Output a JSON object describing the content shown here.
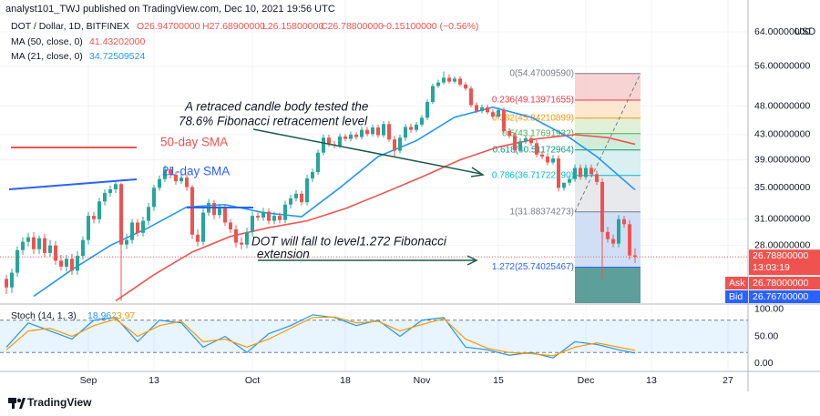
{
  "chart_data": {
    "type": "candlestick",
    "header": {
      "publisher": "analyst101_TWJ published on TradingView.com, Dec 10, 2021 19:56 UTC",
      "symbol": "DOT / Dollar, 1D, BITFINEX",
      "open": "O26.94700000",
      "high": "H27.68900000",
      "low": "L26.15800000",
      "close": "C26.78800000",
      "change": "−0.15100000 (−0.56%)"
    },
    "currency": "USD",
    "x": [
      "2021-08-17",
      "2021-08-18",
      "2021-08-19",
      "2021-08-20",
      "2021-08-21",
      "2021-08-22",
      "2021-08-23",
      "2021-08-24",
      "2021-08-25",
      "2021-08-26",
      "2021-08-27",
      "2021-08-28",
      "2021-08-29",
      "2021-08-30",
      "2021-08-31",
      "2021-09-01",
      "2021-09-02",
      "2021-09-03",
      "2021-09-04",
      "2021-09-05",
      "2021-09-06",
      "2021-09-07",
      "2021-09-08",
      "2021-09-09",
      "2021-09-10",
      "2021-09-11",
      "2021-09-12",
      "2021-09-13",
      "2021-09-14",
      "2021-09-15",
      "2021-09-16",
      "2021-09-17",
      "2021-09-18",
      "2021-09-19",
      "2021-09-20",
      "2021-09-21",
      "2021-09-22",
      "2021-09-23",
      "2021-09-24",
      "2021-09-25",
      "2021-09-26",
      "2021-09-27",
      "2021-09-28",
      "2021-09-29",
      "2021-09-30",
      "2021-10-01",
      "2021-10-02",
      "2021-10-03",
      "2021-10-04",
      "2021-10-05",
      "2021-10-06",
      "2021-10-07",
      "2021-10-08",
      "2021-10-09",
      "2021-10-10",
      "2021-10-11",
      "2021-10-12",
      "2021-10-13",
      "2021-10-14",
      "2021-10-15",
      "2021-10-16",
      "2021-10-17",
      "2021-10-18",
      "2021-10-19",
      "2021-10-20",
      "2021-10-21",
      "2021-10-22",
      "2021-10-23",
      "2021-10-24",
      "2021-10-25",
      "2021-10-26",
      "2021-10-27",
      "2021-10-28",
      "2021-10-29",
      "2021-10-30",
      "2021-10-31",
      "2021-11-01",
      "2021-11-02",
      "2021-11-03",
      "2021-11-04",
      "2021-11-05",
      "2021-11-06",
      "2021-11-07",
      "2021-11-08",
      "2021-11-09",
      "2021-11-10",
      "2021-11-11",
      "2021-11-12",
      "2021-11-13",
      "2021-11-14",
      "2021-11-15",
      "2021-11-16",
      "2021-11-17",
      "2021-11-18",
      "2021-11-19",
      "2021-11-20",
      "2021-11-21",
      "2021-11-22",
      "2021-11-23",
      "2021-11-24",
      "2021-11-25",
      "2021-11-26",
      "2021-11-27",
      "2021-11-28",
      "2021-11-29",
      "2021-11-30",
      "2021-12-01",
      "2021-12-02",
      "2021-12-03",
      "2021-12-04",
      "2021-12-05",
      "2021-12-06",
      "2021-12-07",
      "2021-12-08",
      "2021-12-09",
      "2021-12-10"
    ],
    "open": [
      24.6,
      23.8,
      25.2,
      27.5,
      28.4,
      28.9,
      27.6,
      28.8,
      27.2,
      28.0,
      26.4,
      25.8,
      26.6,
      25.4,
      26.9,
      28.6,
      31.4,
      31.0,
      33.2,
      34.3,
      34.8,
      35.5,
      28.1,
      28.6,
      30.6,
      29.4,
      30.8,
      32.5,
      35.0,
      36.2,
      37.6,
      36.8,
      35.9,
      36.4,
      35.1,
      29.2,
      28.4,
      31.8,
      33.0,
      31.5,
      32.4,
      30.6,
      29.8,
      28.3,
      28.1,
      29.5,
      31.4,
      31.2,
      31.9,
      30.8,
      31.4,
      30.9,
      32.8,
      33.6,
      34.2,
      33.1,
      36.3,
      37.2,
      40.1,
      42.5,
      41.4,
      41.2,
      42.7,
      42.3,
      43.0,
      42.6,
      43.8,
      43.1,
      44.2,
      42.9,
      44.8,
      42.2,
      40.4,
      42.5,
      44.3,
      43.8,
      44.7,
      45.9,
      48.8,
      51.9,
      52.6,
      53.6,
      52.8,
      53.4,
      52.2,
      51.4,
      48.2,
      47.1,
      47.8,
      46.9,
      46.1,
      47.3,
      43.6,
      42.8,
      40.5,
      41.9,
      42.4,
      41.6,
      39.8,
      39.5,
      38.6,
      39.2,
      35.0,
      35.7,
      36.2,
      37.8,
      36.5,
      37.8,
      36.9,
      35.8,
      29.5,
      28.7,
      28.2,
      31.0,
      30.4,
      26.947
    ],
    "high": [
      25.0,
      25.6,
      27.9,
      28.9,
      29.4,
      29.5,
      29.1,
      29.3,
      28.6,
      28.5,
      27.0,
      27.0,
      27.1,
      27.4,
      29.0,
      31.9,
      31.9,
      33.7,
      34.8,
      35.3,
      36.0,
      35.7,
      29.3,
      31.0,
      31.0,
      31.3,
      33.0,
      35.4,
      36.7,
      38.2,
      38.0,
      37.2,
      36.9,
      36.8,
      35.4,
      29.8,
      32.3,
      33.5,
      33.4,
      32.9,
      32.8,
      31.0,
      30.3,
      28.9,
      30.0,
      31.9,
      31.8,
      32.4,
      32.3,
      31.9,
      31.8,
      33.3,
      34.1,
      34.7,
      34.6,
      36.8,
      37.7,
      40.6,
      43.0,
      43.0,
      42.0,
      43.2,
      43.1,
      43.5,
      43.4,
      44.3,
      44.3,
      44.7,
      44.7,
      45.3,
      45.3,
      42.8,
      43.0,
      44.8,
      44.9,
      45.2,
      46.4,
      49.3,
      52.4,
      53.2,
      54.9,
      54.3,
      53.9,
      53.9,
      52.7,
      51.9,
      48.7,
      48.3,
      48.3,
      47.4,
      47.8,
      47.8,
      44.1,
      43.3,
      42.4,
      42.9,
      42.9,
      42.1,
      40.3,
      40.0,
      39.7,
      39.7,
      35.7,
      36.7,
      38.3,
      38.3,
      38.3,
      38.3,
      37.4,
      36.3,
      30.1,
      29.2,
      31.5,
      31.4,
      30.9,
      27.689
    ],
    "low": [
      23.2,
      23.3,
      24.8,
      27.0,
      27.9,
      27.1,
      27.1,
      26.8,
      26.8,
      26.0,
      25.4,
      25.3,
      25.0,
      25.0,
      26.5,
      28.1,
      30.5,
      30.5,
      32.7,
      33.8,
      34.3,
      22.6,
      27.6,
      28.2,
      29.0,
      29.0,
      30.3,
      32.0,
      34.6,
      35.8,
      36.3,
      35.4,
      35.5,
      34.6,
      28.7,
      27.9,
      28.0,
      31.4,
      31.0,
      31.1,
      30.2,
      29.4,
      27.8,
      27.6,
      27.7,
      29.0,
      30.8,
      30.8,
      30.4,
      30.4,
      30.5,
      30.5,
      32.3,
      33.2,
      32.7,
      32.7,
      35.8,
      36.8,
      39.7,
      41.0,
      40.8,
      40.8,
      41.9,
      41.9,
      42.2,
      42.2,
      42.7,
      42.7,
      42.5,
      42.5,
      41.8,
      39.5,
      40.0,
      42.0,
      43.3,
      43.4,
      44.3,
      45.5,
      48.4,
      51.5,
      52.2,
      52.4,
      52.4,
      51.8,
      51.0,
      47.8,
      46.7,
      46.7,
      46.5,
      45.7,
      45.7,
      43.2,
      42.4,
      40.0,
      40.1,
      41.5,
      41.2,
      39.4,
      39.1,
      38.2,
      38.3,
      34.5,
      34.6,
      35.3,
      35.8,
      36.1,
      36.1,
      36.5,
      35.4,
      24.5,
      28.3,
      27.8,
      27.8,
      30.0,
      26.5,
      26.158
    ],
    "close": [
      23.8,
      25.2,
      27.5,
      28.4,
      28.9,
      27.6,
      28.8,
      27.2,
      28.0,
      26.4,
      25.8,
      26.6,
      25.4,
      26.9,
      28.6,
      31.4,
      31.0,
      33.2,
      34.3,
      34.8,
      35.5,
      28.1,
      28.6,
      30.6,
      29.4,
      30.8,
      32.5,
      35.0,
      36.2,
      37.6,
      36.8,
      35.9,
      36.4,
      35.1,
      29.2,
      28.4,
      31.8,
      33.0,
      31.5,
      32.4,
      30.6,
      29.8,
      28.3,
      28.1,
      29.5,
      31.4,
      31.2,
      31.9,
      30.8,
      31.4,
      30.9,
      32.8,
      33.6,
      34.2,
      33.1,
      36.3,
      37.2,
      40.1,
      42.5,
      41.4,
      41.2,
      42.7,
      42.3,
      43.0,
      42.6,
      43.8,
      43.1,
      44.2,
      42.9,
      44.8,
      42.2,
      40.4,
      42.5,
      44.3,
      43.8,
      44.7,
      45.9,
      48.8,
      51.9,
      52.6,
      53.6,
      52.8,
      53.4,
      52.2,
      51.4,
      48.2,
      47.1,
      47.8,
      46.9,
      46.1,
      47.3,
      43.6,
      42.8,
      40.5,
      41.9,
      42.4,
      41.6,
      39.8,
      39.5,
      38.6,
      39.2,
      35.0,
      35.7,
      36.2,
      37.8,
      36.5,
      37.8,
      36.9,
      35.8,
      29.5,
      28.7,
      28.2,
      31.0,
      30.4,
      26.94,
      26.788
    ],
    "up_color": "#26a69a",
    "down_color": "#ef5350",
    "xlim": [
      "2021-08-16",
      "2021-12-31"
    ],
    "xticks": [
      {
        "value": "2021-09-01",
        "label": "Sep"
      },
      {
        "value": "2021-09-13",
        "label": "13"
      },
      {
        "value": "2021-10-01",
        "label": "Oct"
      },
      {
        "value": "2021-10-18",
        "label": "18"
      },
      {
        "value": "2021-11-01",
        "label": "Nov"
      },
      {
        "value": "2021-11-15",
        "label": "15"
      },
      {
        "value": "2021-12-01",
        "label": "Dec"
      },
      {
        "value": "2021-12-13",
        "label": "13"
      },
      {
        "value": "2021-12-27",
        "label": "27"
      }
    ],
    "ylim": [
      22.4,
      72.4
    ],
    "log_scale": true,
    "yticks": [
      {
        "value": 64,
        "label": "64.00000000"
      },
      {
        "value": 56,
        "label": "56.00000000"
      },
      {
        "value": 48,
        "label": "48.00000000"
      },
      {
        "value": 43,
        "label": "43.00000000"
      },
      {
        "value": 39,
        "label": "39.00000000"
      },
      {
        "value": 35,
        "label": "35.00000000"
      },
      {
        "value": 31,
        "label": "31.00000000"
      },
      {
        "value": 28,
        "label": "28.00000000"
      }
    ],
    "grid": true,
    "overlays": [
      {
        "name": "MA (50, close, 0)",
        "last_label": "41.43202000",
        "color": "#ef5350",
        "x": [
          "2021-09-06",
          "2021-09-13",
          "2021-09-20",
          "2021-09-27",
          "2021-10-04",
          "2021-10-11",
          "2021-10-18",
          "2021-10-25",
          "2021-11-01",
          "2021-11-08",
          "2021-11-15",
          "2021-11-22",
          "2021-11-29",
          "2021-12-05",
          "2021-12-10"
        ],
        "values": [
          22.6,
          25.0,
          27.3,
          29.0,
          30.0,
          30.8,
          32.3,
          34.3,
          36.5,
          39.0,
          41.0,
          42.3,
          43.0,
          42.5,
          41.43202
        ]
      },
      {
        "name": "MA (21, close, 0)",
        "last_label": "34.72509524",
        "color": "#2196f3",
        "x": [
          "2021-08-22",
          "2021-08-29",
          "2021-09-05",
          "2021-09-12",
          "2021-09-19",
          "2021-09-26",
          "2021-10-03",
          "2021-10-10",
          "2021-10-17",
          "2021-10-24",
          "2021-10-31",
          "2021-11-07",
          "2021-11-14",
          "2021-11-21",
          "2021-11-28",
          "2021-12-03",
          "2021-12-10"
        ],
        "values": [
          23.0,
          25.5,
          28.0,
          30.0,
          32.5,
          32.8,
          31.8,
          31.3,
          35.0,
          39.5,
          42.0,
          46.0,
          47.8,
          46.0,
          42.5,
          39.5,
          34.72509524
        ]
      }
    ],
    "last_price": {
      "value": 26.788,
      "label": "26.78800000",
      "countdown": "13:03:19"
    },
    "ask": {
      "name": "Ask",
      "label": "26.78000000"
    },
    "bid": {
      "name": "Bid",
      "label": "26.76700000"
    },
    "fibonacci": {
      "x": [
        "2021-11-29",
        "2021-12-11"
      ],
      "levels": [
        {
          "value": 54.4700959,
          "label": "0(54.47009590)",
          "color": "#787b86",
          "fill": "#f7cbcb"
        },
        {
          "value": 49.13971655,
          "label": "0.236(49.13971655)",
          "color": "#f23645",
          "fill": "#fde3c9"
        },
        {
          "value": 45.84210899,
          "label": "0.382(45.84210899)",
          "color": "#ff9800",
          "fill": "#dcefd2"
        },
        {
          "value": 43.17691932,
          "label": "0.5(43.17691932)",
          "color": "#4caf50",
          "fill": "#c9ead4"
        },
        {
          "value": 40.51172964,
          "label": "0.618(40.51172964)",
          "color": "#089981",
          "fill": "#d3ecec"
        },
        {
          "value": 36.7172229,
          "label": "0.786(36.71722290)",
          "color": "#00bcd4",
          "fill": "#e3e5ea"
        },
        {
          "value": 31.88374273,
          "label": "1(31.88374273)",
          "color": "#787b86",
          "fill": "#c9d9f5"
        },
        {
          "value": 25.74025467,
          "label": "1.272(25.74025467)",
          "color": "#2962ff",
          "fill": "#3f8e8a"
        }
      ]
    },
    "annotations": {
      "fib_note": [
        "A retraced candle body tested the",
        "78.6% Fibonacci retracement level"
      ],
      "sma50": "50-day SMA",
      "sma21": "21-day SMA",
      "target": [
        "DOT will fall to  level1.272 Fibonacci",
        "extension"
      ]
    },
    "stochastic": {
      "name": "Stoch (14, 1, 3)",
      "k_color": "#2196f3",
      "d_color": "#ff9800",
      "x": [
        "2021-08-17",
        "2021-08-21",
        "2021-08-25",
        "2021-08-29",
        "2021-09-02",
        "2021-09-06",
        "2021-09-10",
        "2021-09-14",
        "2021-09-18",
        "2021-09-22",
        "2021-09-26",
        "2021-09-30",
        "2021-10-04",
        "2021-10-08",
        "2021-10-12",
        "2021-10-16",
        "2021-10-20",
        "2021-10-24",
        "2021-10-28",
        "2021-11-01",
        "2021-11-05",
        "2021-11-09",
        "2021-11-13",
        "2021-11-17",
        "2021-11-21",
        "2021-11-25",
        "2021-11-29",
        "2021-12-03",
        "2021-12-07",
        "2021-12-10"
      ],
      "k": [
        30,
        75,
        60,
        45,
        80,
        85,
        40,
        80,
        75,
        30,
        50,
        20,
        55,
        70,
        90,
        85,
        70,
        80,
        50,
        80,
        85,
        30,
        25,
        15,
        20,
        10,
        40,
        35,
        25,
        18.96
      ],
      "d": [
        25,
        60,
        65,
        50,
        70,
        82,
        50,
        70,
        78,
        40,
        45,
        30,
        45,
        65,
        85,
        86,
        75,
        78,
        60,
        72,
        83,
        45,
        28,
        20,
        18,
        14,
        30,
        38,
        30,
        23.97
      ],
      "ylim": [
        -13.3,
        108.3
      ],
      "yticks": [
        {
          "value": 100,
          "label": "100.00"
        },
        {
          "value": 50,
          "label": "50.00"
        },
        {
          "value": 0,
          "label": "0.00"
        }
      ],
      "band": [
        20,
        80
      ]
    },
    "footer": "TradingView"
  }
}
